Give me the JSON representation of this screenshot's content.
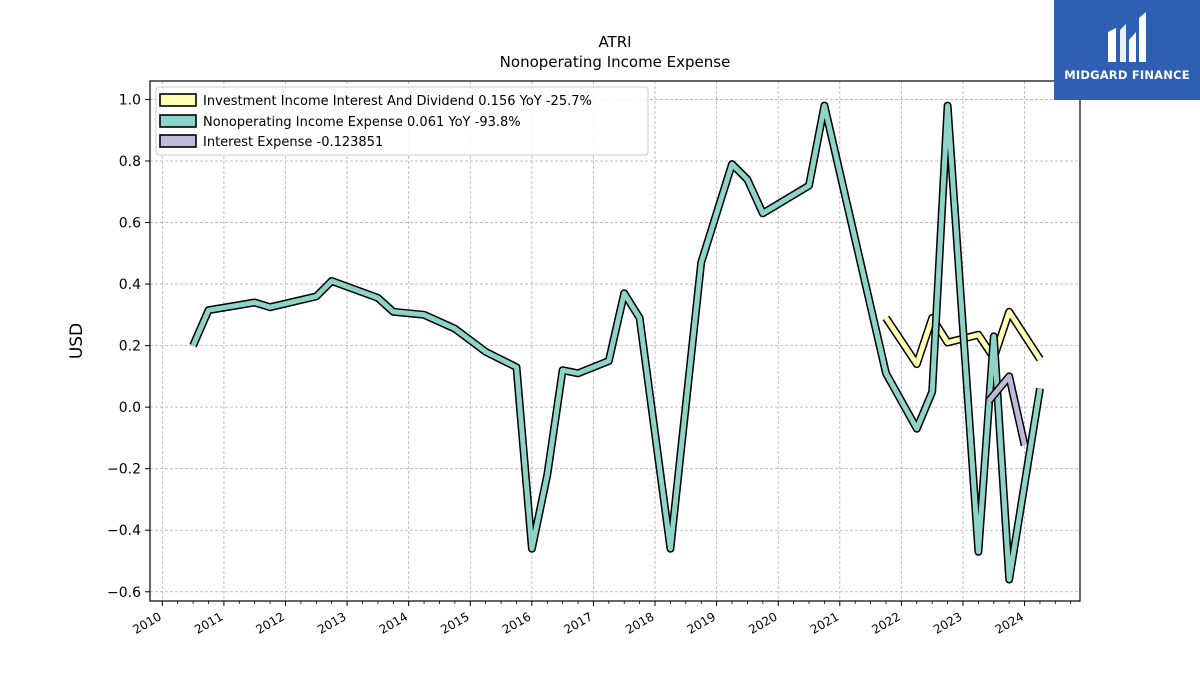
{
  "logo": {
    "text": "MIDGARD FINANCE"
  },
  "chart_data": {
    "type": "line",
    "title": "ATRI",
    "subtitle": "Nonoperating Income Expense",
    "ylabel": "USD",
    "xlabel": "",
    "ylim": [
      -0.63,
      1.06
    ],
    "xlim": [
      2009.8,
      2024.9
    ],
    "x_ticks": [
      "2010",
      "2011",
      "2012",
      "2013",
      "2014",
      "2015",
      "2016",
      "2017",
      "2018",
      "2019",
      "2020",
      "2021",
      "2022",
      "2023",
      "2024"
    ],
    "y_ticks": [
      "1.0",
      "0.8",
      "0.6",
      "0.4",
      "0.2",
      "0.0",
      "−0.2",
      "−0.4",
      "−0.6"
    ],
    "y_tick_values": [
      1.0,
      0.8,
      0.6,
      0.4,
      0.2,
      0.0,
      -0.2,
      -0.4,
      -0.6
    ],
    "grid": true,
    "legend_position": "top-left",
    "series": [
      {
        "name": "Investment Income Interest And Dividend",
        "legend_label": "Investment Income Interest And Dividend  0.156 YoY -25.7%",
        "color": "#ffffb3",
        "x": [
          2021.75,
          2022.25,
          2022.5,
          2022.75,
          2023.25,
          2023.5,
          2023.75,
          2024.25
        ],
        "y": [
          0.29,
          0.14,
          0.29,
          0.21,
          0.235,
          0.16,
          0.31,
          0.156
        ]
      },
      {
        "name": "Nonoperating Income Expense",
        "legend_label": "Nonoperating Income Expense  0.061 YoY -93.8%",
        "color": "#8dd3c7",
        "x": [
          2010.5,
          2010.75,
          2011.5,
          2011.75,
          2012.5,
          2012.75,
          2013.5,
          2013.75,
          2014.25,
          2014.75,
          2015.25,
          2015.75,
          2016.0,
          2016.25,
          2016.5,
          2016.75,
          2017.25,
          2017.5,
          2017.75,
          2018.25,
          2018.75,
          2019.25,
          2019.5,
          2019.75,
          2020.5,
          2020.75,
          2021.75,
          2022.25,
          2022.5,
          2022.75,
          2023.25,
          2023.5,
          2023.75,
          2024.25
        ],
        "y": [
          0.2,
          0.315,
          0.34,
          0.325,
          0.36,
          0.41,
          0.355,
          0.31,
          0.3,
          0.255,
          0.18,
          0.13,
          -0.46,
          -0.22,
          0.12,
          0.11,
          0.15,
          0.37,
          0.29,
          -0.46,
          0.47,
          0.79,
          0.74,
          0.63,
          0.72,
          0.98,
          0.11,
          -0.07,
          0.05,
          0.98,
          -0.47,
          0.23,
          -0.56,
          0.061
        ]
      },
      {
        "name": "Interest Expense",
        "legend_label": "Interest Expense  -0.123851",
        "color": "#bebada",
        "x": [
          2023.42,
          2023.75,
          2024.0
        ],
        "y": [
          0.02,
          0.1,
          -0.124
        ]
      }
    ]
  }
}
